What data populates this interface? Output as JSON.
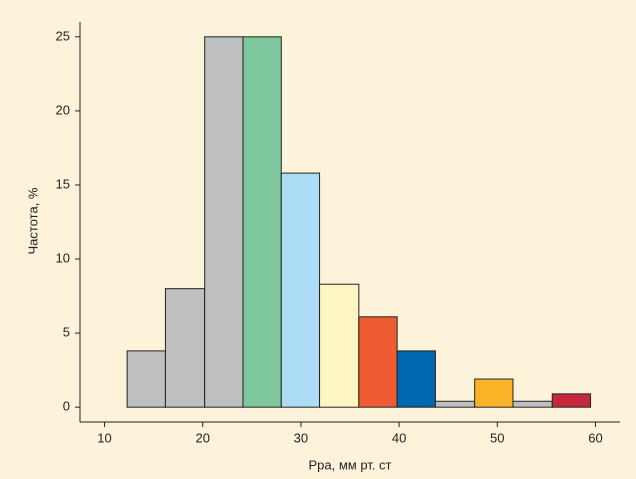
{
  "chart_data": {
    "type": "histogram",
    "bins": [
      12.3,
      16.2,
      20.2,
      24.1,
      28.0,
      31.9,
      35.9,
      39.8,
      43.7,
      47.7,
      51.6,
      55.6,
      59.5
    ],
    "values": [
      3.8,
      8,
      25,
      25,
      15.8,
      8.3,
      6.1,
      3.8,
      0.4,
      1.9,
      0.4,
      0.9
    ],
    "colors": [
      "#bebfc1",
      "#bebfc1",
      "#bebfc1",
      "#7fc79c",
      "#acdcf6",
      "#fdf6c2",
      "#ef5b32",
      "#0067b1",
      "#bebfc1",
      "#fbb428",
      "#bebfc1",
      "#c4283b"
    ],
    "xlabel": "Рра, мм рт. ст",
    "ylabel": "Частота, %",
    "xlim": [
      7.5,
      62.5
    ],
    "xticks": [
      10,
      20,
      30,
      40,
      50,
      60
    ],
    "ylim": [
      -1,
      26
    ],
    "yticks": [
      0,
      5,
      10,
      15,
      20,
      25
    ]
  }
}
